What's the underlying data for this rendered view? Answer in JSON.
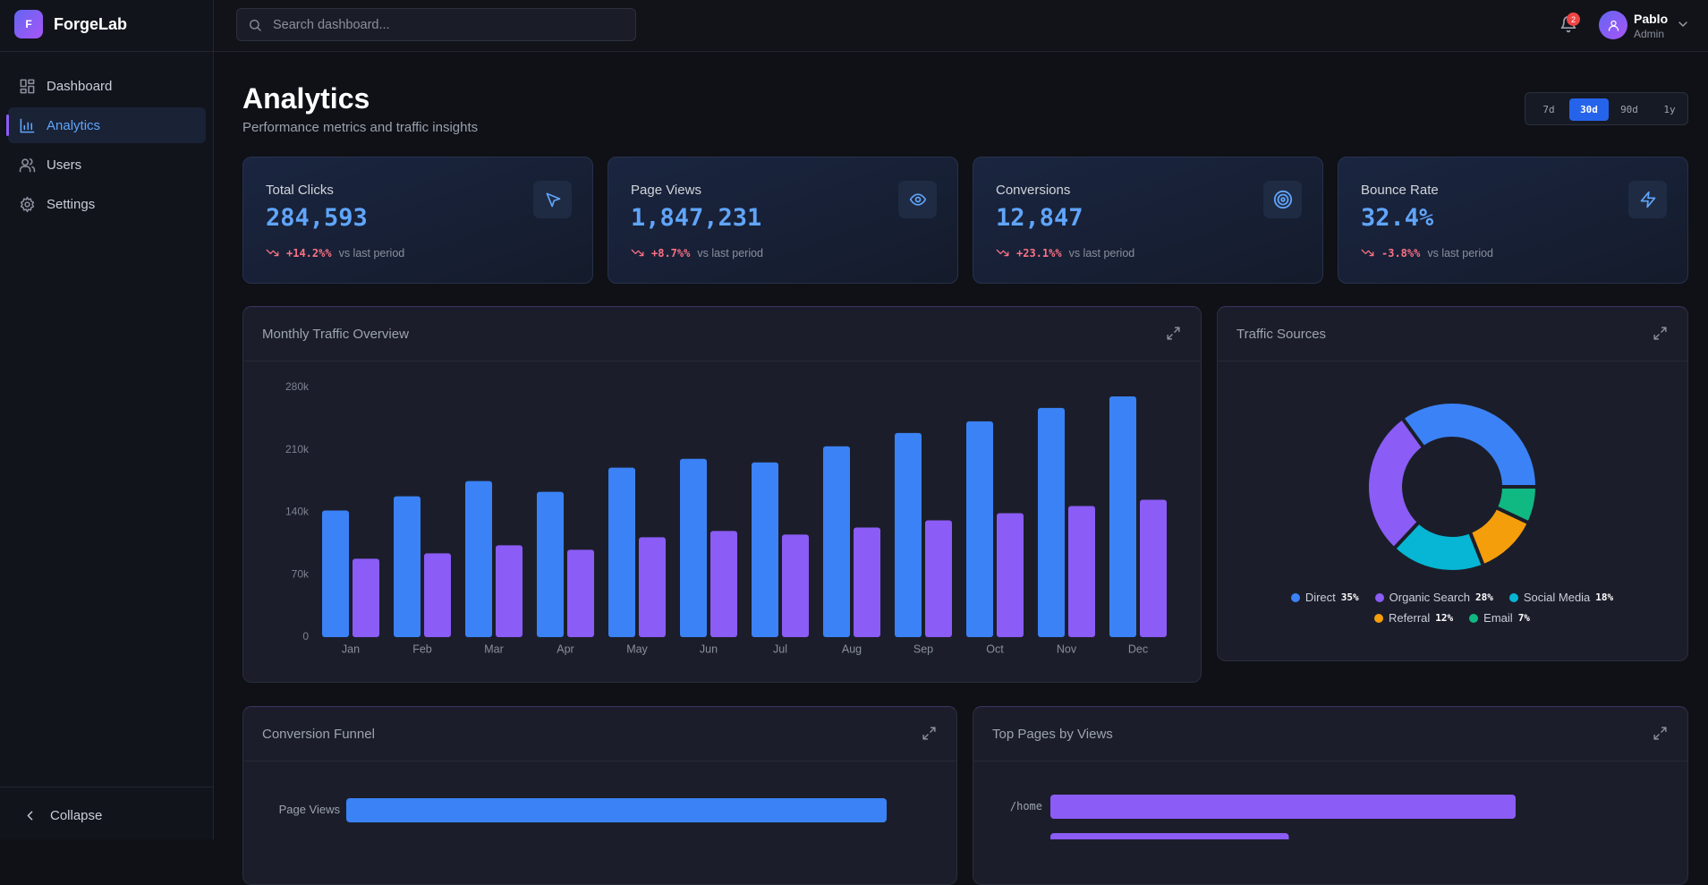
{
  "sidebar": {
    "brand_initial": "F",
    "brand": "ForgeLab",
    "nav": [
      {
        "label": "Dashboard",
        "active": false
      },
      {
        "label": "Analytics",
        "active": true
      },
      {
        "label": "Users",
        "active": false
      },
      {
        "label": "Settings",
        "active": false
      }
    ],
    "collapse": "Collapse"
  },
  "header": {
    "search_placeholder": "Search dashboard...",
    "notifications": 2,
    "user_name": "Pablo",
    "user_role": "Admin"
  },
  "page": {
    "title": "Analytics",
    "subtitle": "Performance metrics and traffic insights",
    "ranges": [
      {
        "label": "7d",
        "active": false
      },
      {
        "label": "30d",
        "active": true
      },
      {
        "label": "90d",
        "active": false
      },
      {
        "label": "1y",
        "active": false
      }
    ]
  },
  "kpis": [
    {
      "label": "Total Clicks",
      "value": "284,593",
      "change": "+14.2%%",
      "note": "vs last period"
    },
    {
      "label": "Page Views",
      "value": "1,847,231",
      "change": "+8.7%%",
      "note": "vs last period"
    },
    {
      "label": "Conversions",
      "value": "12,847",
      "change": "+23.1%%",
      "note": "vs last period"
    },
    {
      "label": "Bounce Rate",
      "value": "32.4%",
      "change": "-3.8%%",
      "note": "vs last period"
    }
  ],
  "traffic_chart": {
    "type": "bar",
    "title": "Monthly Traffic Overview",
    "categories": [
      "Jan",
      "Feb",
      "Mar",
      "Apr",
      "May",
      "Jun",
      "Jul",
      "Aug",
      "Sep",
      "Oct",
      "Nov",
      "Dec"
    ],
    "series": [
      {
        "color": "#3b82f6",
        "values": [
          142000,
          158000,
          175000,
          163000,
          190000,
          200000,
          196000,
          214000,
          229000,
          242000,
          257000,
          270000
        ]
      },
      {
        "color": "#8b5cf6",
        "values": [
          88000,
          94000,
          103000,
          98000,
          112000,
          119000,
          115000,
          123000,
          131000,
          139000,
          147000,
          154000
        ]
      }
    ],
    "ylim": [
      0,
      280000
    ],
    "yticks": [
      0,
      {
        "value": 70000,
        "label": "70k"
      },
      {
        "value": 140000,
        "label": "140k"
      },
      {
        "value": 210000,
        "label": "210k"
      },
      {
        "value": 280000,
        "label": "280k"
      }
    ],
    "grid": false
  },
  "sources_chart": {
    "type": "pie",
    "title": "Traffic Sources",
    "donut": true,
    "categories": [
      "Direct",
      "Organic Search",
      "Social Media",
      "Referral",
      "Email"
    ],
    "values": [
      35,
      28,
      18,
      12,
      7
    ],
    "value_labels": [
      "35%",
      "28%",
      "18%",
      "12%",
      "7%"
    ],
    "colors": [
      "#3b82f6",
      "#8b5cf6",
      "#06b6d4",
      "#f59e0b",
      "#10b981"
    ]
  },
  "funnel_chart": {
    "type": "hbar",
    "title": "Conversion Funnel",
    "categories": [
      "Page Views"
    ],
    "values": [
      1847231
    ],
    "color": "#3b82f6"
  },
  "pages_chart": {
    "type": "hbar",
    "title": "Top Pages by Views",
    "categories": [
      "/home",
      null
    ],
    "values": [
      48200,
      24700
    ],
    "color": "#8b5cf6"
  }
}
